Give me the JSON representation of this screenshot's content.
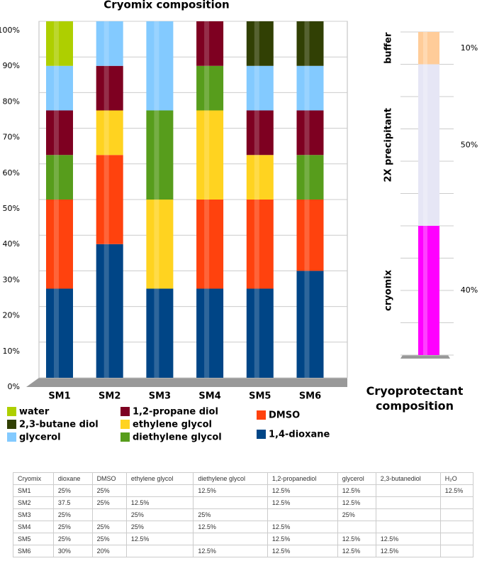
{
  "chart_data": [
    {
      "type": "bar",
      "stacked": true,
      "title": "Cryomix composition",
      "categories": [
        "SM1",
        "SM2",
        "SM3",
        "SM4",
        "SM5",
        "SM6"
      ],
      "series": [
        {
          "name": "1,4-dioxane",
          "color": "#004586",
          "values": [
            25,
            37.5,
            25,
            25,
            25,
            30
          ]
        },
        {
          "name": "DMSO",
          "color": "#ff420e",
          "values": [
            25,
            25,
            0,
            25,
            25,
            20
          ]
        },
        {
          "name": "ethylene glycol",
          "color": "#ffd320",
          "values": [
            0,
            12.5,
            25,
            25,
            12.5,
            0
          ]
        },
        {
          "name": "diethylene glycol",
          "color": "#579d1c",
          "values": [
            12.5,
            0,
            25,
            12.5,
            0,
            12.5
          ]
        },
        {
          "name": "1,2-propane diol",
          "color": "#7e0021",
          "values": [
            12.5,
            12.5,
            0,
            12.5,
            12.5,
            12.5
          ]
        },
        {
          "name": "glycerol",
          "color": "#83caff",
          "values": [
            12.5,
            12.5,
            25,
            0,
            12.5,
            12.5
          ]
        },
        {
          "name": "2,3-butane diol",
          "color": "#314004",
          "values": [
            0,
            0,
            0,
            0,
            12.5,
            12.5
          ]
        },
        {
          "name": "water",
          "color": "#aecf00",
          "values": [
            12.5,
            0,
            0,
            0,
            0,
            0
          ]
        }
      ],
      "ylim": [
        0,
        100
      ],
      "yticks": [
        {
          "value": 0,
          "label": "0%"
        },
        {
          "value": 10,
          "label": "10%"
        },
        {
          "value": 20,
          "label": "20%"
        },
        {
          "value": 30,
          "label": "30%"
        },
        {
          "value": 40,
          "label": "40%"
        },
        {
          "value": 50,
          "label": "50%"
        },
        {
          "value": 60,
          "label": "60%"
        },
        {
          "value": 70,
          "label": "70%"
        },
        {
          "value": 80,
          "label": "80%"
        },
        {
          "value": 90,
          "label": "90%"
        },
        {
          "value": 100,
          "label": "100%"
        }
      ],
      "grid": true
    },
    {
      "type": "bar",
      "stacked": true,
      "title": "Cryoprotectant composition",
      "categories": [
        "cryomix",
        "2X precipitant",
        "buffer"
      ],
      "values": [
        40,
        50,
        10
      ],
      "value_labels": [
        "40%",
        "50%",
        "10%"
      ],
      "colors": [
        "#ff00ff",
        "#e6e6f5",
        "#ffcc99"
      ],
      "ylim": [
        0,
        100
      ],
      "yticks": [
        0,
        10,
        20,
        30,
        40,
        50,
        60,
        70,
        80,
        90,
        100
      ],
      "grid": true
    }
  ],
  "table": {
    "header": [
      "Cryomix",
      "dioxane",
      "DMSO",
      "ethylene glycol",
      "diethylene glycol",
      "1,2-propanediol",
      "glycerol",
      "2,3-butanediol",
      "H₂O"
    ],
    "rows": [
      [
        "SM1",
        "25%",
        "25%",
        null,
        "12.5%",
        "12.5%",
        "12.5%",
        null,
        "12.5%"
      ],
      [
        "SM2",
        "37.5",
        "25%",
        "12.5%",
        null,
        "12.5%",
        "12.5%",
        null,
        null
      ],
      [
        "SM3",
        "25%",
        null,
        "25%",
        "25%",
        null,
        "25%",
        null,
        null
      ],
      [
        "SM4",
        "25%",
        "25%",
        "25%",
        "12.5%",
        "12.5%",
        null,
        null,
        null
      ],
      [
        "SM5",
        "25%",
        "25%",
        "12.5%",
        null,
        "12.5%",
        "12.5%",
        "12.5%",
        null
      ],
      [
        "SM6",
        "30%",
        "20%",
        null,
        "12.5%",
        "12.5%",
        "12.5%",
        "12.5%",
        null
      ]
    ]
  }
}
